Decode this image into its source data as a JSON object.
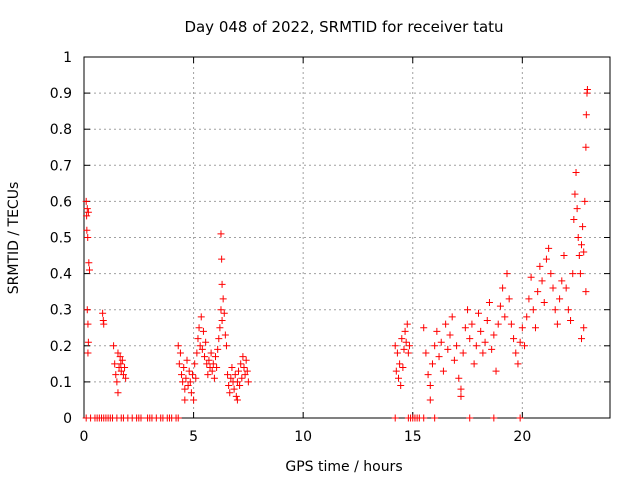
{
  "chart_data": {
    "type": "scatter",
    "title": "Day 048 of 2022, SRMTID for receiver tatu",
    "xlabel": "GPS time / hours",
    "ylabel": "SRMTID / TECUs",
    "xlim": [
      0,
      24
    ],
    "ylim": [
      0,
      1
    ],
    "xticks": [
      0,
      5,
      10,
      15,
      20
    ],
    "xtick_labels": [
      "0",
      "5",
      "10",
      "15",
      "20"
    ],
    "yticks": [
      0,
      0.1,
      0.2,
      0.3,
      0.4,
      0.5,
      0.6,
      0.7,
      0.8,
      0.9,
      1
    ],
    "ytick_labels": [
      "0",
      "0.1",
      "0.2",
      "0.3",
      "0.4",
      "0.5",
      "0.6",
      "0.7",
      "0.8",
      "0.9",
      "1"
    ],
    "grid": true,
    "marker": "+",
    "color": "#ff0000",
    "series": [
      {
        "name": "SRMTID",
        "points": [
          [
            0.1,
            0.6
          ],
          [
            0.12,
            0.56
          ],
          [
            0.13,
            0.52
          ],
          [
            0.15,
            0.58
          ],
          [
            0.17,
            0.5
          ],
          [
            0.2,
            0.57
          ],
          [
            0.15,
            0.3
          ],
          [
            0.18,
            0.26
          ],
          [
            0.2,
            0.21
          ],
          [
            0.18,
            0.18
          ],
          [
            0.22,
            0.43
          ],
          [
            0.25,
            0.41
          ],
          [
            0.85,
            0.29
          ],
          [
            0.88,
            0.27
          ],
          [
            0.9,
            0.26
          ],
          [
            1.35,
            0.2
          ],
          [
            1.4,
            0.15
          ],
          [
            1.45,
            0.12
          ],
          [
            1.5,
            0.1
          ],
          [
            1.55,
            0.07
          ],
          [
            1.6,
            0.14
          ],
          [
            1.65,
            0.17
          ],
          [
            1.7,
            0.13
          ],
          [
            1.75,
            0.16
          ],
          [
            1.8,
            0.12
          ],
          [
            1.85,
            0.14
          ],
          [
            1.9,
            0.11
          ],
          [
            1.55,
            0.18
          ],
          [
            1.68,
            0.15
          ],
          [
            4.3,
            0.2
          ],
          [
            4.35,
            0.15
          ],
          [
            4.4,
            0.18
          ],
          [
            4.45,
            0.12
          ],
          [
            4.5,
            0.1
          ],
          [
            4.55,
            0.14
          ],
          [
            4.6,
            0.08
          ],
          [
            4.65,
            0.11
          ],
          [
            4.7,
            0.16
          ],
          [
            4.75,
            0.09
          ],
          [
            4.8,
            0.13
          ],
          [
            4.85,
            0.1
          ],
          [
            4.9,
            0.07
          ],
          [
            4.95,
            0.12
          ],
          [
            5.0,
            0.05
          ],
          [
            5.05,
            0.15
          ],
          [
            5.1,
            0.11
          ],
          [
            5.15,
            0.18
          ],
          [
            5.2,
            0.22
          ],
          [
            5.25,
            0.25
          ],
          [
            5.3,
            0.2
          ],
          [
            5.35,
            0.28
          ],
          [
            5.4,
            0.19
          ],
          [
            5.45,
            0.24
          ],
          [
            5.5,
            0.17
          ],
          [
            5.55,
            0.21
          ],
          [
            5.6,
            0.15
          ],
          [
            5.65,
            0.12
          ],
          [
            5.7,
            0.16
          ],
          [
            5.75,
            0.14
          ],
          [
            5.8,
            0.18
          ],
          [
            5.85,
            0.13
          ],
          [
            5.9,
            0.15
          ],
          [
            5.95,
            0.11
          ],
          [
            6.0,
            0.17
          ],
          [
            6.05,
            0.14
          ],
          [
            6.1,
            0.19
          ],
          [
            6.15,
            0.22
          ],
          [
            6.2,
            0.25
          ],
          [
            6.25,
            0.3
          ],
          [
            6.3,
            0.27
          ],
          [
            6.35,
            0.33
          ],
          [
            6.4,
            0.29
          ],
          [
            6.45,
            0.23
          ],
          [
            6.5,
            0.2
          ],
          [
            6.55,
            0.12
          ],
          [
            6.6,
            0.09
          ],
          [
            6.65,
            0.07
          ],
          [
            6.7,
            0.11
          ],
          [
            6.75,
            0.14
          ],
          [
            6.8,
            0.1
          ],
          [
            6.85,
            0.08
          ],
          [
            6.9,
            0.12
          ],
          [
            6.95,
            0.06
          ],
          [
            7.0,
            0.1
          ],
          [
            7.05,
            0.13
          ],
          [
            7.1,
            0.09
          ],
          [
            7.15,
            0.15
          ],
          [
            7.2,
            0.11
          ],
          [
            7.25,
            0.17
          ],
          [
            7.3,
            0.14
          ],
          [
            7.35,
            0.12
          ],
          [
            7.4,
            0.16
          ],
          [
            7.45,
            0.13
          ],
          [
            7.5,
            0.1
          ],
          [
            6.25,
            0.51
          ],
          [
            6.28,
            0.44
          ],
          [
            6.3,
            0.37
          ],
          [
            4.6,
            0.05
          ],
          [
            7.0,
            0.05
          ],
          [
            14.2,
            0.2
          ],
          [
            14.25,
            0.13
          ],
          [
            14.3,
            0.18
          ],
          [
            14.35,
            0.11
          ],
          [
            14.4,
            0.15
          ],
          [
            14.45,
            0.09
          ],
          [
            14.5,
            0.22
          ],
          [
            14.55,
            0.14
          ],
          [
            14.6,
            0.19
          ],
          [
            14.65,
            0.24
          ],
          [
            14.7,
            0.21
          ],
          [
            14.75,
            0.26
          ],
          [
            14.8,
            0.18
          ],
          [
            14.85,
            0.2
          ],
          [
            15.5,
            0.25
          ],
          [
            15.6,
            0.18
          ],
          [
            15.7,
            0.12
          ],
          [
            15.8,
            0.09
          ],
          [
            15.9,
            0.15
          ],
          [
            16.0,
            0.2
          ],
          [
            16.1,
            0.24
          ],
          [
            16.2,
            0.17
          ],
          [
            16.3,
            0.21
          ],
          [
            16.4,
            0.13
          ],
          [
            16.5,
            0.26
          ],
          [
            16.6,
            0.19
          ],
          [
            16.7,
            0.23
          ],
          [
            16.8,
            0.28
          ],
          [
            16.9,
            0.16
          ],
          [
            17.0,
            0.2
          ],
          [
            17.1,
            0.11
          ],
          [
            17.2,
            0.08
          ],
          [
            17.3,
            0.18
          ],
          [
            17.4,
            0.25
          ],
          [
            17.5,
            0.3
          ],
          [
            17.6,
            0.22
          ],
          [
            17.7,
            0.26
          ],
          [
            17.8,
            0.15
          ],
          [
            17.9,
            0.2
          ],
          [
            18.0,
            0.29
          ],
          [
            18.1,
            0.24
          ],
          [
            18.2,
            0.18
          ],
          [
            18.3,
            0.21
          ],
          [
            18.4,
            0.27
          ],
          [
            18.5,
            0.32
          ],
          [
            18.6,
            0.19
          ],
          [
            18.7,
            0.23
          ],
          [
            18.8,
            0.13
          ],
          [
            18.9,
            0.26
          ],
          [
            19.0,
            0.31
          ],
          [
            19.1,
            0.36
          ],
          [
            19.2,
            0.28
          ],
          [
            19.3,
            0.4
          ],
          [
            19.4,
            0.33
          ],
          [
            19.5,
            0.26
          ],
          [
            19.6,
            0.22
          ],
          [
            19.7,
            0.18
          ],
          [
            19.8,
            0.15
          ],
          [
            19.9,
            0.21
          ],
          [
            20.0,
            0.25
          ],
          [
            20.1,
            0.2
          ],
          [
            20.2,
            0.28
          ],
          [
            20.3,
            0.33
          ],
          [
            20.4,
            0.39
          ],
          [
            20.5,
            0.3
          ],
          [
            20.6,
            0.25
          ],
          [
            20.7,
            0.35
          ],
          [
            20.8,
            0.42
          ],
          [
            20.9,
            0.38
          ],
          [
            21.0,
            0.32
          ],
          [
            21.1,
            0.44
          ],
          [
            21.2,
            0.47
          ],
          [
            21.3,
            0.4
          ],
          [
            21.4,
            0.36
          ],
          [
            21.5,
            0.3
          ],
          [
            21.6,
            0.26
          ],
          [
            21.7,
            0.33
          ],
          [
            21.8,
            0.38
          ],
          [
            21.9,
            0.45
          ],
          [
            22.0,
            0.36
          ],
          [
            22.1,
            0.3
          ],
          [
            22.2,
            0.27
          ],
          [
            22.3,
            0.4
          ],
          [
            22.35,
            0.55
          ],
          [
            22.4,
            0.62
          ],
          [
            22.45,
            0.68
          ],
          [
            22.5,
            0.58
          ],
          [
            22.55,
            0.5
          ],
          [
            22.6,
            0.45
          ],
          [
            22.65,
            0.4
          ],
          [
            22.7,
            0.48
          ],
          [
            22.75,
            0.53
          ],
          [
            22.8,
            0.46
          ],
          [
            22.85,
            0.6
          ],
          [
            22.9,
            0.75
          ],
          [
            22.92,
            0.84
          ],
          [
            22.95,
            0.9
          ],
          [
            22.97,
            0.91
          ],
          [
            22.9,
            0.35
          ],
          [
            22.8,
            0.25
          ],
          [
            22.7,
            0.22
          ],
          [
            15.8,
            0.05
          ],
          [
            17.2,
            0.06
          ],
          [
            0.1,
            0
          ],
          [
            0.3,
            0
          ],
          [
            0.5,
            0
          ],
          [
            0.6,
            0
          ],
          [
            0.7,
            0
          ],
          [
            0.8,
            0
          ],
          [
            0.9,
            0
          ],
          [
            1.0,
            0
          ],
          [
            1.1,
            0
          ],
          [
            1.2,
            0
          ],
          [
            1.3,
            0
          ],
          [
            1.5,
            0
          ],
          [
            1.7,
            0
          ],
          [
            1.8,
            0
          ],
          [
            2.0,
            0
          ],
          [
            2.2,
            0
          ],
          [
            2.4,
            0
          ],
          [
            2.5,
            0
          ],
          [
            2.6,
            0
          ],
          [
            2.9,
            0
          ],
          [
            3.0,
            0
          ],
          [
            3.1,
            0
          ],
          [
            3.3,
            0
          ],
          [
            3.5,
            0
          ],
          [
            3.6,
            0
          ],
          [
            3.8,
            0
          ],
          [
            3.9,
            0
          ],
          [
            4.0,
            0
          ],
          [
            4.2,
            0
          ],
          [
            4.3,
            0
          ],
          [
            14.2,
            0
          ],
          [
            14.8,
            0
          ],
          [
            14.9,
            0
          ],
          [
            15.0,
            0
          ],
          [
            15.1,
            0
          ],
          [
            15.2,
            0
          ],
          [
            15.3,
            0
          ],
          [
            15.5,
            0
          ],
          [
            16.0,
            0
          ],
          [
            17.6,
            0
          ],
          [
            18.7,
            0
          ],
          [
            19.9,
            0
          ]
        ]
      }
    ]
  }
}
